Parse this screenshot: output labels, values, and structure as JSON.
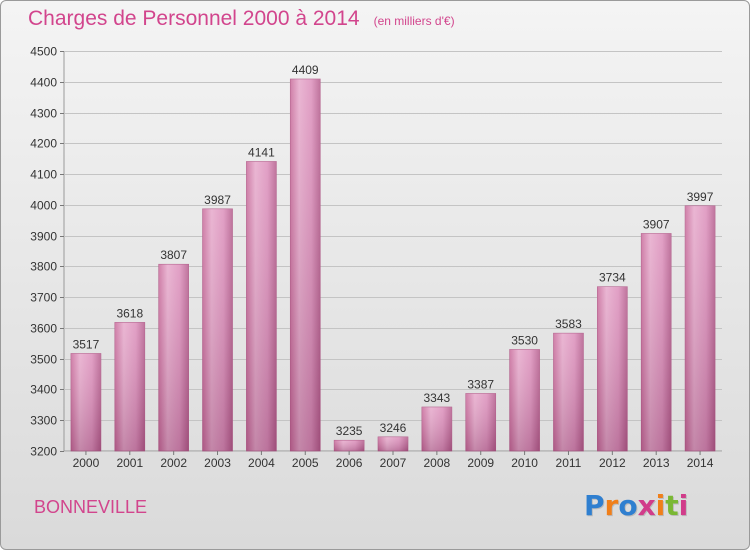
{
  "header": {
    "title": "Charges de Personnel 2000 à 2014",
    "subtitle": "(en milliers d'€)"
  },
  "footer": {
    "city": "BONNEVILLE",
    "logo": {
      "letters": [
        "P",
        "r",
        "o",
        "x",
        "i",
        "t",
        "i"
      ],
      "colors": [
        "#2f7fd0",
        "#f07f1a",
        "#2f7fd0",
        "#d13c8a",
        "#f07f1a",
        "#7ab834",
        "#d13c8a"
      ]
    }
  },
  "chart_data": {
    "type": "bar",
    "title": "Charges de Personnel 2000 à 2014",
    "subtitle": "(en milliers d'€)",
    "xlabel": "",
    "ylabel": "",
    "categories": [
      "2000",
      "2001",
      "2002",
      "2003",
      "2004",
      "2005",
      "2006",
      "2007",
      "2008",
      "2009",
      "2010",
      "2011",
      "2012",
      "2013",
      "2014"
    ],
    "values": [
      3517,
      3618,
      3807,
      3987,
      4141,
      4409,
      3235,
      3246,
      3343,
      3387,
      3530,
      3583,
      3734,
      3907,
      3997
    ],
    "ylim": [
      3200,
      4500
    ],
    "yticks": [
      3200,
      3300,
      3400,
      3500,
      3600,
      3700,
      3800,
      3900,
      4000,
      4100,
      4200,
      4300,
      4400,
      4500
    ],
    "grid": true,
    "bar_color": "#d77bab",
    "legend": "none"
  }
}
